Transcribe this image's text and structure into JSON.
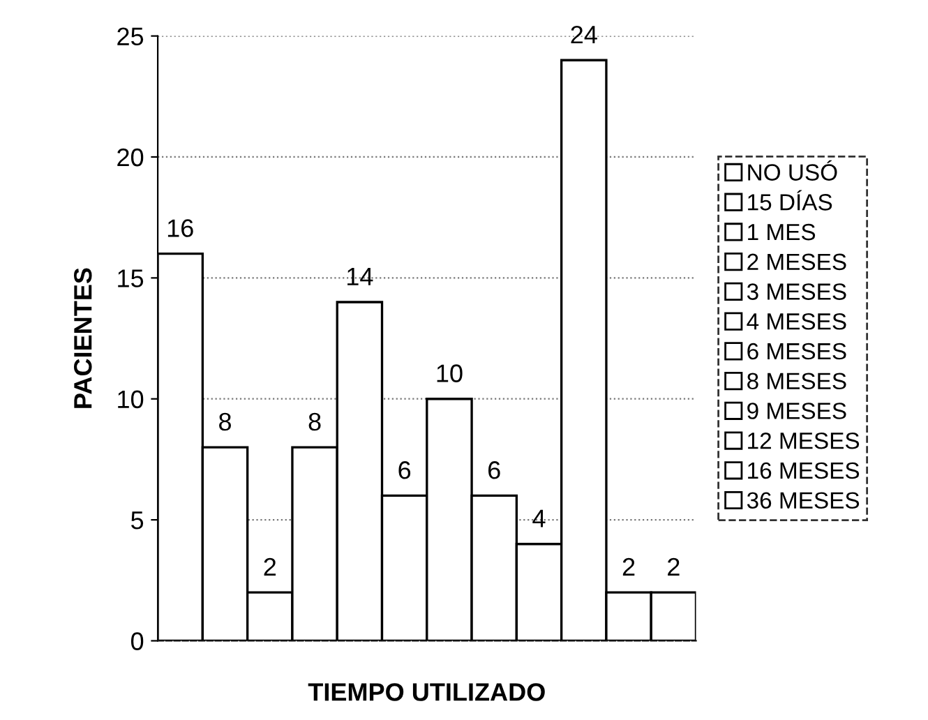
{
  "chart_data": {
    "type": "bar",
    "xlabel": "TIEMPO UTILIZADO",
    "ylabel": "PACIENTES",
    "categories": [
      null,
      null,
      null,
      null,
      null,
      null,
      null,
      null,
      null,
      null,
      null,
      null
    ],
    "series": [
      {
        "name": "NO USÓ",
        "color": "#ffffff",
        "values": [
          16,
          null,
          null,
          null,
          null,
          null,
          null,
          null,
          null,
          null,
          null,
          null
        ]
      },
      {
        "name": "15 DÍAS",
        "color": "#ffffff",
        "values": [
          null,
          8,
          null,
          null,
          null,
          null,
          null,
          null,
          null,
          null,
          null,
          null
        ]
      },
      {
        "name": "1 MES",
        "color": "#ffffff",
        "values": [
          null,
          null,
          2,
          null,
          null,
          null,
          null,
          null,
          null,
          null,
          null,
          null
        ]
      },
      {
        "name": "2 MESES",
        "color": "#ffffff",
        "values": [
          null,
          null,
          null,
          8,
          null,
          null,
          null,
          null,
          null,
          null,
          null,
          null
        ]
      },
      {
        "name": "3 MESES",
        "color": "#ffffff",
        "values": [
          null,
          null,
          null,
          null,
          14,
          null,
          null,
          null,
          null,
          null,
          null,
          null
        ]
      },
      {
        "name": "4 MESES",
        "color": "#ffffff",
        "values": [
          null,
          null,
          null,
          null,
          null,
          6,
          null,
          null,
          null,
          null,
          null,
          null
        ]
      },
      {
        "name": "6 MESES",
        "color": "#ffffff",
        "values": [
          null,
          null,
          null,
          null,
          null,
          null,
          10,
          null,
          null,
          null,
          null,
          null
        ]
      },
      {
        "name": "8 MESES",
        "color": "#ffffff",
        "values": [
          null,
          null,
          null,
          null,
          null,
          null,
          null,
          6,
          null,
          null,
          null,
          null
        ]
      },
      {
        "name": "9 MESES",
        "color": "#ffffff",
        "values": [
          null,
          null,
          null,
          null,
          null,
          null,
          null,
          null,
          4,
          null,
          null,
          null
        ]
      },
      {
        "name": "12 MESES",
        "color": "#ffffff",
        "values": [
          null,
          null,
          null,
          null,
          null,
          null,
          null,
          null,
          null,
          24,
          null,
          null
        ]
      },
      {
        "name": "16 MESES",
        "color": "#ffffff",
        "values": [
          null,
          null,
          null,
          null,
          null,
          null,
          null,
          null,
          null,
          null,
          2,
          null
        ]
      },
      {
        "name": "36 MESES",
        "color": "#ffffff",
        "values": [
          null,
          null,
          null,
          null,
          null,
          null,
          null,
          null,
          null,
          null,
          null,
          2
        ]
      }
    ],
    "ylim": [
      0,
      25
    ],
    "yticks": [
      0,
      5,
      10,
      15,
      20,
      25
    ],
    "grid": "y",
    "data_labels": true,
    "legend": "right"
  }
}
